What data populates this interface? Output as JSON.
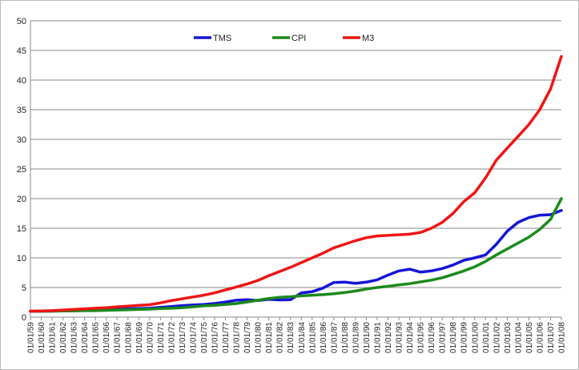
{
  "chart_data": {
    "type": "line",
    "title": "",
    "xlabel": "",
    "ylabel": "",
    "ylim": [
      0,
      50
    ],
    "yticks": [
      0,
      5,
      10,
      15,
      20,
      25,
      30,
      35,
      40,
      45,
      50
    ],
    "grid": "horizontal",
    "legend_position": "top-center",
    "categories": [
      "01/01/59",
      "01/01/60",
      "01/01/61",
      "01/01/62",
      "01/01/63",
      "01/01/64",
      "01/01/65",
      "01/01/66",
      "01/01/67",
      "01/01/68",
      "01/01/69",
      "01/01/70",
      "01/01/71",
      "01/01/72",
      "01/01/73",
      "01/01/74",
      "01/01/75",
      "01/01/76",
      "01/01/77",
      "01/01/78",
      "01/01/79",
      "01/01/80",
      "01/01/81",
      "01/01/82",
      "01/01/83",
      "01/01/84",
      "01/01/85",
      "01/01/86",
      "01/01/87",
      "01/01/88",
      "01/01/89",
      "01/01/90",
      "01/01/91",
      "01/01/92",
      "01/01/93",
      "01/01/94",
      "01/01/95",
      "01/01/96",
      "01/01/97",
      "01/01/98",
      "01/01/99",
      "01/01/00",
      "01/01/01",
      "01/01/02",
      "01/01/03",
      "01/01/04",
      "01/01/05",
      "01/01/06",
      "01/01/07",
      "01/01/08"
    ],
    "series": [
      {
        "name": "TMS",
        "color": "#1515d6",
        "values": [
          1.0,
          1.0,
          1.05,
          1.1,
          1.15,
          1.2,
          1.25,
          1.3,
          1.35,
          1.4,
          1.45,
          1.5,
          1.65,
          1.8,
          1.95,
          2.05,
          2.15,
          2.3,
          2.55,
          2.85,
          2.95,
          2.8,
          3.0,
          2.9,
          2.95,
          4.1,
          4.3,
          4.9,
          5.85,
          5.9,
          5.7,
          5.9,
          6.3,
          7.1,
          7.8,
          8.1,
          7.6,
          7.8,
          8.2,
          8.8,
          9.6,
          10.0,
          10.5,
          12.3,
          14.5,
          16.0,
          16.8,
          17.2,
          17.3,
          18.0
        ]
      },
      {
        "name": "CPI",
        "color": "#1a8a1a",
        "values": [
          1.0,
          1.0,
          1.0,
          1.05,
          1.05,
          1.1,
          1.1,
          1.15,
          1.2,
          1.25,
          1.3,
          1.35,
          1.45,
          1.5,
          1.6,
          1.75,
          1.9,
          2.0,
          2.15,
          2.3,
          2.55,
          2.85,
          3.15,
          3.35,
          3.45,
          3.6,
          3.7,
          3.8,
          3.95,
          4.15,
          4.4,
          4.75,
          5.0,
          5.2,
          5.45,
          5.65,
          5.95,
          6.25,
          6.65,
          7.2,
          7.8,
          8.5,
          9.4,
          10.5,
          11.5,
          12.5,
          13.5,
          14.8,
          16.5,
          20.0
        ]
      },
      {
        "name": "M3",
        "color": "#ee1515",
        "values": [
          1.0,
          1.05,
          1.1,
          1.2,
          1.3,
          1.4,
          1.5,
          1.6,
          1.75,
          1.85,
          2.0,
          2.1,
          2.4,
          2.8,
          3.1,
          3.4,
          3.7,
          4.1,
          4.6,
          5.1,
          5.6,
          6.2,
          7.0,
          7.7,
          8.4,
          9.2,
          10.0,
          10.8,
          11.7,
          12.3,
          12.9,
          13.4,
          13.7,
          13.8,
          13.9,
          14.0,
          14.3,
          15.0,
          16.0,
          17.5,
          19.5,
          21.0,
          23.5,
          26.5,
          28.5,
          30.5,
          32.5,
          35.0,
          38.5,
          44.0
        ]
      }
    ]
  }
}
